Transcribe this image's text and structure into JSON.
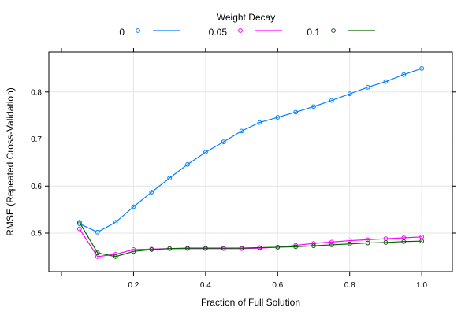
{
  "chart_data": {
    "type": "line",
    "legend_title": "Weight Decay",
    "legend_position": "top",
    "xlabel": "Fraction of Full Solution",
    "ylabel": "RMSE (Repeated Cross-Validation)",
    "xlim": [
      -0.035,
      1.085
    ],
    "ylim": [
      0.418,
      0.885
    ],
    "xticks": [
      0.2,
      0.4,
      0.6,
      0.8,
      1.0
    ],
    "xtick_labels": [
      "0.2",
      "0.4",
      "0.6",
      "0.8",
      "1.0"
    ],
    "yticks": [
      0.5,
      0.6,
      0.7,
      0.8
    ],
    "ytick_labels": [
      "0.5",
      "0.6",
      "0.7",
      "0.8"
    ],
    "grid": true,
    "x": [
      0.05,
      0.1,
      0.15,
      0.2,
      0.25,
      0.3,
      0.35,
      0.4,
      0.45,
      0.5,
      0.55,
      0.6,
      0.65,
      0.7,
      0.75,
      0.8,
      0.85,
      0.9,
      0.95,
      1.0
    ],
    "series": [
      {
        "name": "0",
        "color": "#0080ff",
        "values": [
          0.52,
          0.502,
          0.523,
          0.556,
          0.587,
          0.617,
          0.646,
          0.672,
          0.694,
          0.717,
          0.735,
          0.746,
          0.757,
          0.769,
          0.782,
          0.796,
          0.81,
          0.822,
          0.837,
          0.85
        ]
      },
      {
        "name": "0.05",
        "color": "#ff00ff",
        "values": [
          0.509,
          0.45,
          0.455,
          0.465,
          0.466,
          0.467,
          0.467,
          0.467,
          0.467,
          0.467,
          0.468,
          0.47,
          0.474,
          0.478,
          0.481,
          0.484,
          0.486,
          0.488,
          0.49,
          0.492
        ]
      },
      {
        "name": "0.1",
        "color": "#006400",
        "values": [
          0.523,
          0.458,
          0.45,
          0.461,
          0.465,
          0.467,
          0.468,
          0.468,
          0.468,
          0.468,
          0.469,
          0.47,
          0.471,
          0.473,
          0.475,
          0.477,
          0.479,
          0.48,
          0.482,
          0.483
        ]
      }
    ]
  }
}
